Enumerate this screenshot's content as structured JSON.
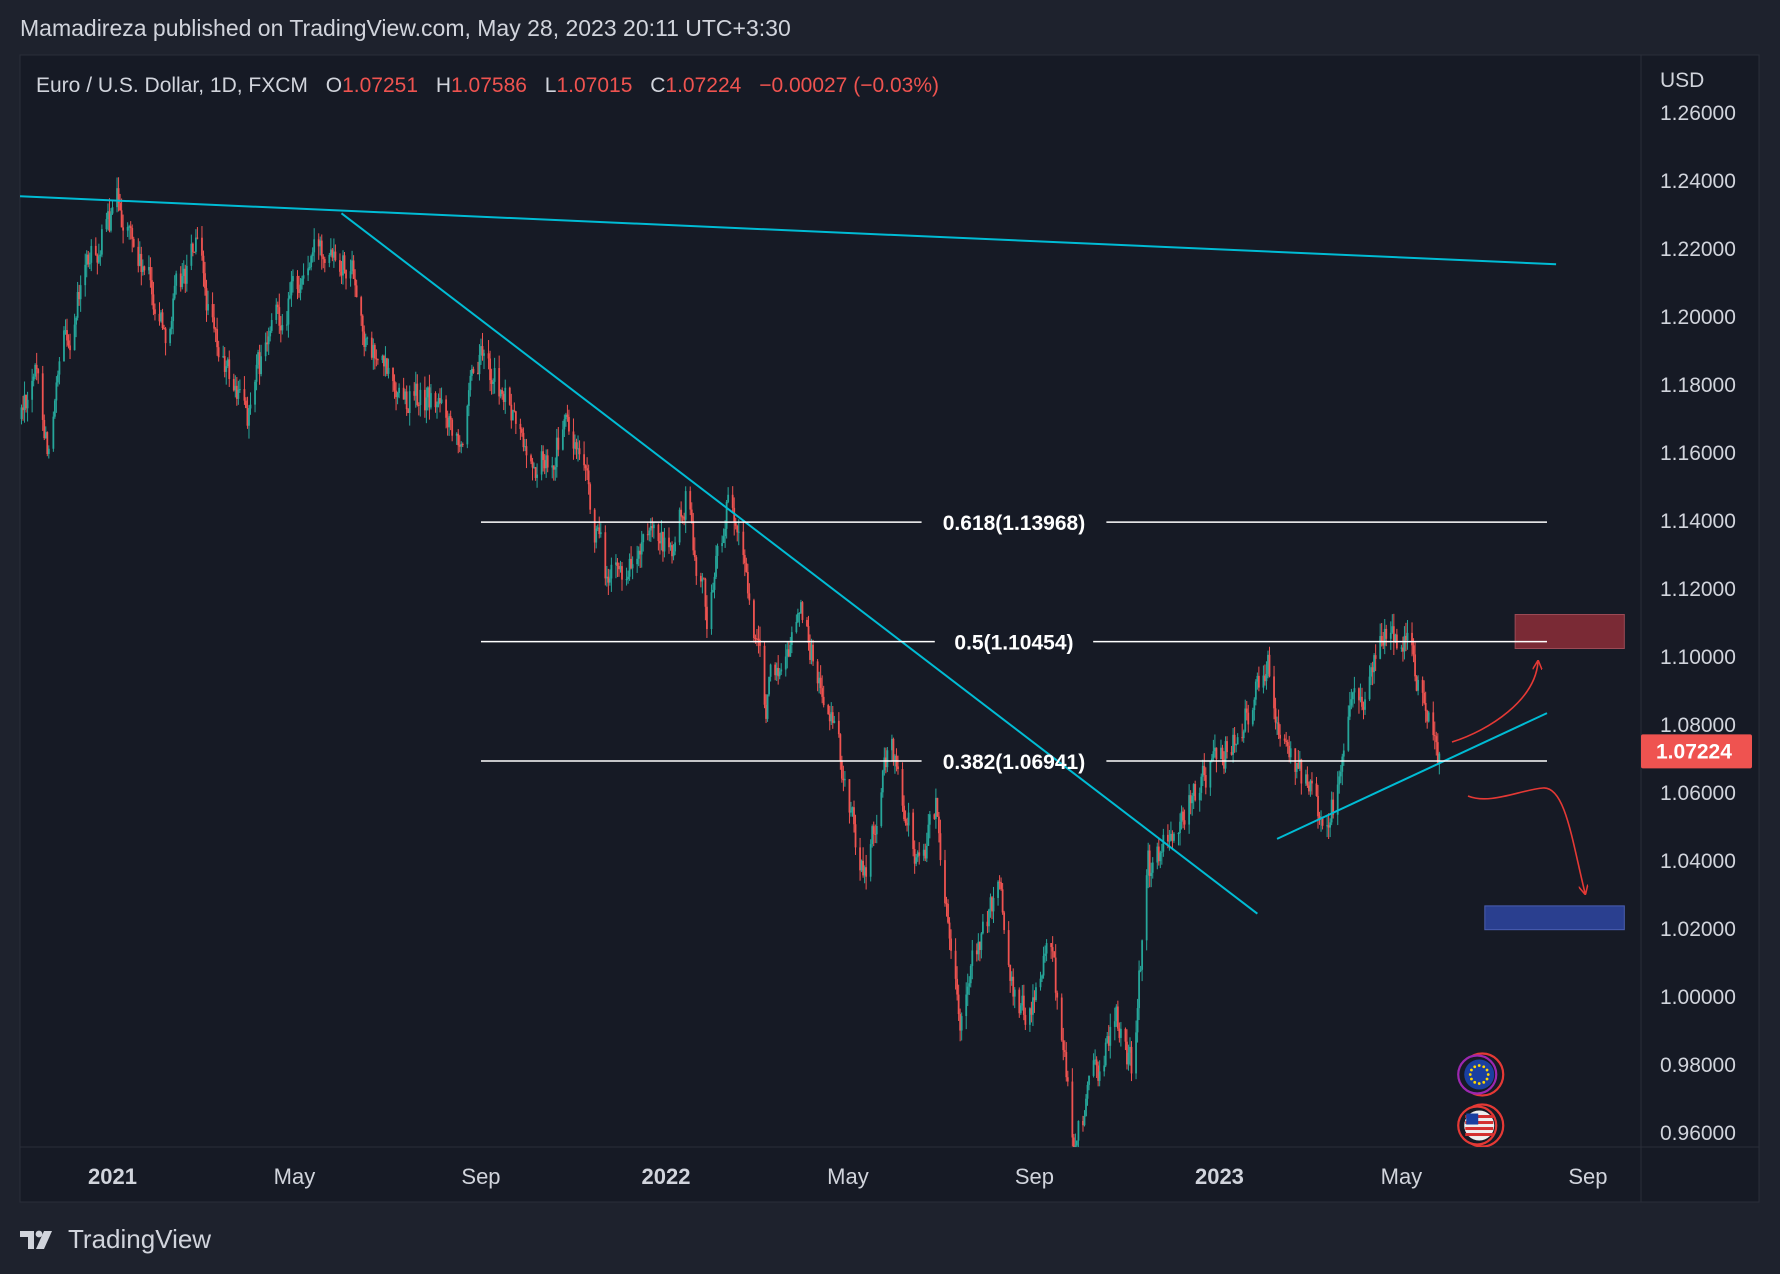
{
  "publisher_line": "Mamadireza published on TradingView.com, May 28, 2023 20:11 UTC+3:30",
  "legend": {
    "symbol": "Euro / U.S. Dollar, 1D, FXCM",
    "open_label": "O",
    "open": "1.07251",
    "high_label": "H",
    "high": "1.07586",
    "low_label": "L",
    "low": "1.07015",
    "close_label": "C",
    "close": "1.07224",
    "change": "−0.00027 (−0.03%)"
  },
  "currency": "USD",
  "last_price": "1.07224",
  "brand": "TradingView",
  "colors": {
    "background": "#1e222d",
    "chart_bg": "#161a25",
    "up": "#26a69a",
    "down": "#ef5350",
    "trendline": "#00bcd4",
    "fib": "#ffffff",
    "sell_zone": "#7a2a35",
    "buy_zone": "#2a3f8f",
    "annotation": "#e53935"
  },
  "chart_data": {
    "type": "candlestick",
    "symbol": "EURUSD",
    "timeframe": "1D",
    "ylim": [
      0.955,
      1.265
    ],
    "y_ticks": [
      "1.26000",
      "1.24000",
      "1.22000",
      "1.20000",
      "1.18000",
      "1.16000",
      "1.14000",
      "1.12000",
      "1.10000",
      "1.08000",
      "1.06000",
      "1.04000",
      "1.02000",
      "1.00000",
      "0.98000",
      "0.96000"
    ],
    "x_ticks": [
      {
        "label": "2021",
        "date": "2021-01-01",
        "bold": true
      },
      {
        "label": "May",
        "date": "2021-05-01",
        "bold": false
      },
      {
        "label": "Sep",
        "date": "2021-09-01",
        "bold": false
      },
      {
        "label": "2022",
        "date": "2022-01-01",
        "bold": true
      },
      {
        "label": "May",
        "date": "2022-05-01",
        "bold": false
      },
      {
        "label": "Sep",
        "date": "2022-09-01",
        "bold": false
      },
      {
        "label": "2023",
        "date": "2023-01-01",
        "bold": true
      },
      {
        "label": "May",
        "date": "2023-05-01",
        "bold": false
      },
      {
        "label": "Sep",
        "date": "2023-09-01",
        "bold": false
      }
    ],
    "xlim": [
      "2020-11-01",
      "2023-10-06"
    ],
    "path": [
      [
        "2020-11-01",
        1.17
      ],
      [
        "2020-11-10",
        1.186
      ],
      [
        "2020-11-20",
        1.162
      ],
      [
        "2020-12-01",
        1.192
      ],
      [
        "2020-12-15",
        1.214
      ],
      [
        "2021-01-01",
        1.229
      ],
      [
        "2021-01-06",
        1.234
      ],
      [
        "2021-01-20",
        1.214
      ],
      [
        "2021-02-05",
        1.198
      ],
      [
        "2021-02-25",
        1.22
      ],
      [
        "2021-03-10",
        1.19
      ],
      [
        "2021-03-31",
        1.172
      ],
      [
        "2021-04-20",
        1.2
      ],
      [
        "2021-05-10",
        1.215
      ],
      [
        "2021-05-25",
        1.226
      ],
      [
        "2021-06-10",
        1.214
      ],
      [
        "2021-06-18",
        1.19
      ],
      [
        "2021-07-05",
        1.18
      ],
      [
        "2021-07-20",
        1.176
      ],
      [
        "2021-08-10",
        1.172
      ],
      [
        "2021-08-20",
        1.168
      ],
      [
        "2021-09-03",
        1.188
      ],
      [
        "2021-09-20",
        1.172
      ],
      [
        "2021-10-06",
        1.154
      ],
      [
        "2021-10-28",
        1.168
      ],
      [
        "2021-11-05",
        1.155
      ],
      [
        "2021-11-24",
        1.12
      ],
      [
        "2021-12-10",
        1.13
      ],
      [
        "2022-01-05",
        1.13
      ],
      [
        "2022-01-14",
        1.146
      ],
      [
        "2022-01-28",
        1.114
      ],
      [
        "2022-02-10",
        1.144
      ],
      [
        "2022-02-25",
        1.12
      ],
      [
        "2022-03-07",
        1.085
      ],
      [
        "2022-03-31",
        1.115
      ],
      [
        "2022-04-20",
        1.08
      ],
      [
        "2022-05-12",
        1.037
      ],
      [
        "2022-05-30",
        1.075
      ],
      [
        "2022-06-15",
        1.04
      ],
      [
        "2022-06-28",
        1.055
      ],
      [
        "2022-07-14",
        0.998
      ],
      [
        "2022-08-10",
        1.032
      ],
      [
        "2022-08-22",
        0.992
      ],
      [
        "2022-09-12",
        1.015
      ],
      [
        "2022-09-28",
        0.955
      ],
      [
        "2022-10-10",
        0.973
      ],
      [
        "2022-10-25",
        0.995
      ],
      [
        "2022-11-04",
        0.978
      ],
      [
        "2022-11-15",
        1.035
      ],
      [
        "2022-12-05",
        1.051
      ],
      [
        "2022-12-30",
        1.071
      ],
      [
        "2023-01-17",
        1.079
      ],
      [
        "2023-02-02",
        1.102
      ],
      [
        "2023-02-15",
        1.068
      ],
      [
        "2023-03-15",
        1.052
      ],
      [
        "2023-04-01",
        1.087
      ],
      [
        "2023-04-26",
        1.108
      ],
      [
        "2023-05-05",
        1.105
      ],
      [
        "2023-05-26",
        1.072
      ]
    ]
  },
  "overlays": {
    "fib_levels": [
      {
        "label": "0.618(1.13968)",
        "price": 1.13968,
        "x_start": "2021-09-01",
        "x_end": "2023-08-05"
      },
      {
        "label": "0.5(1.10454)",
        "price": 1.10454,
        "x_start": "2021-09-01",
        "x_end": "2023-08-05"
      },
      {
        "label": "0.382(1.06941)",
        "price": 1.06941,
        "x_start": "2021-09-01",
        "x_end": "2023-08-05"
      }
    ],
    "trendlines": [
      {
        "name": "upper-resistance",
        "from": [
          "2020-11-01",
          1.2355
        ],
        "to": [
          "2023-08-11",
          1.2155
        ]
      },
      {
        "name": "downtrend-line",
        "from": [
          "2021-06-01",
          1.2305
        ],
        "to": [
          "2023-01-26",
          1.0245
        ]
      },
      {
        "name": "rising-support",
        "from": [
          "2023-02-08",
          1.0465
        ],
        "to": [
          "2023-08-05",
          1.0835
        ]
      }
    ],
    "zones": [
      {
        "name": "sell-zone",
        "x_start": "2023-07-15",
        "x_end": "2023-09-25",
        "price_top": 1.1125,
        "price_bottom": 1.1025
      },
      {
        "name": "buy-zone",
        "x_start": "2023-06-25",
        "x_end": "2023-09-25",
        "price_top": 1.0268,
        "price_bottom": 1.0198
      }
    ],
    "flags": [
      {
        "name": "eu-flag",
        "date": "2023-06-20",
        "price": 0.9772
      },
      {
        "name": "us-flag",
        "date": "2023-06-20",
        "price": 0.9622
      }
    ]
  }
}
